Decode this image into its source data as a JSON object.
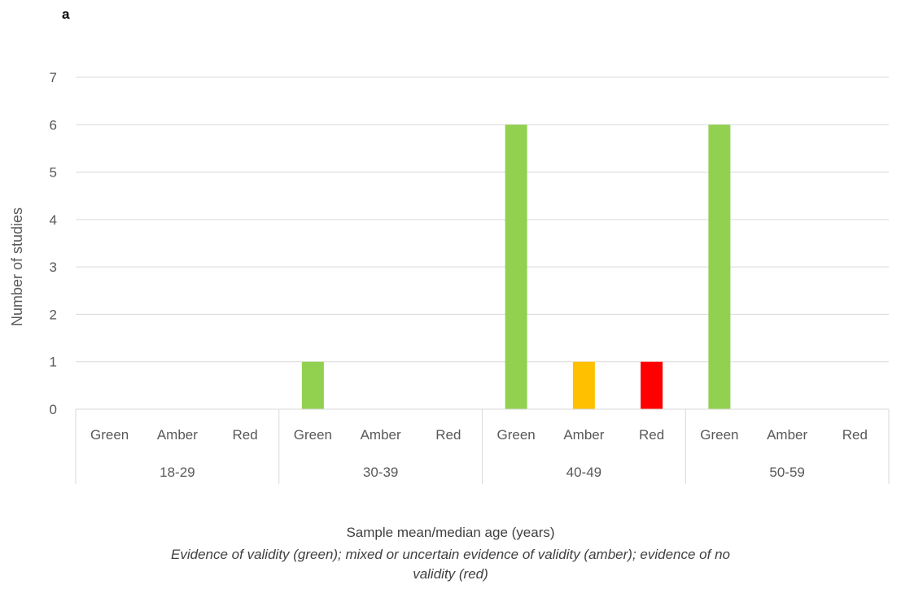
{
  "panel_label": "a",
  "chart_data": {
    "type": "bar",
    "title": "",
    "xlabel": "Sample mean/median age (years)",
    "ylabel": "Number of studies",
    "note_lines": [
      "Evidence of validity (green); mixed or uncertain evidence of validity (amber); evidence of no",
      "validity (red)"
    ],
    "ylim": [
      0,
      7
    ],
    "yticks": [
      0,
      1,
      2,
      3,
      4,
      5,
      6,
      7
    ],
    "grid": true,
    "groups": [
      {
        "label": "18-29",
        "bars": [
          {
            "category": "Green",
            "value": 0,
            "color": "#92d050"
          },
          {
            "category": "Amber",
            "value": 0,
            "color": "#ffc000"
          },
          {
            "category": "Red",
            "value": 0,
            "color": "#ff0000"
          }
        ]
      },
      {
        "label": "30-39",
        "bars": [
          {
            "category": "Green",
            "value": 1,
            "color": "#92d050"
          },
          {
            "category": "Amber",
            "value": 0,
            "color": "#ffc000"
          },
          {
            "category": "Red",
            "value": 0,
            "color": "#ff0000"
          }
        ]
      },
      {
        "label": "40-49",
        "bars": [
          {
            "category": "Green",
            "value": 6,
            "color": "#92d050"
          },
          {
            "category": "Amber",
            "value": 1,
            "color": "#ffc000"
          },
          {
            "category": "Red",
            "value": 1,
            "color": "#ff0000"
          }
        ]
      },
      {
        "label": "50-59",
        "bars": [
          {
            "category": "Green",
            "value": 6,
            "color": "#92d050"
          },
          {
            "category": "Amber",
            "value": 0,
            "color": "#ffc000"
          },
          {
            "category": "Red",
            "value": 0,
            "color": "#ff0000"
          }
        ]
      }
    ]
  }
}
